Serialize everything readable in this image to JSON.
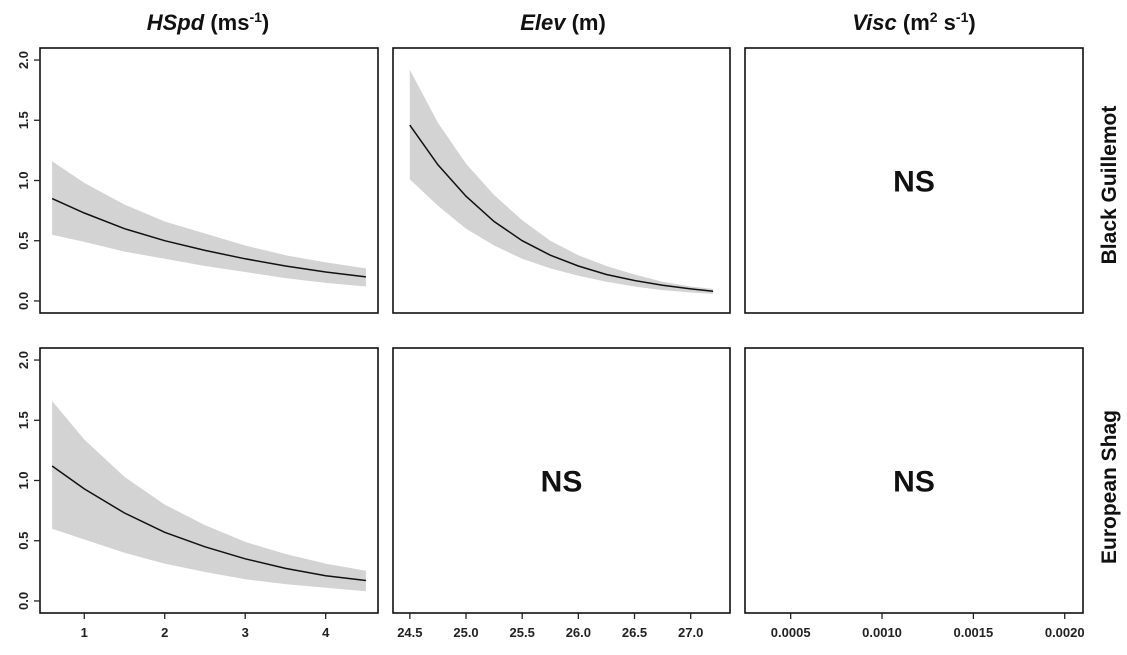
{
  "figure": {
    "col_titles": [
      {
        "italic": "HSpd",
        "rest": " (ms",
        "sup": "-1",
        "close": ")"
      },
      {
        "italic": "Elev",
        "rest": " (m)",
        "sup": "",
        "close": ""
      },
      {
        "italic": "Visc",
        "rest": " (m",
        "sup": "2",
        "close": "",
        "rest2": " s",
        "sup2": "-1",
        "close2": ")"
      }
    ],
    "row_titles": [
      "Black Guillemot",
      "European Shag"
    ],
    "ns_label": "NS"
  },
  "chart_data": [
    {
      "type": "line",
      "row": "Black Guillemot",
      "variable": "HSpd",
      "significant": true,
      "x": [
        0.6,
        1.0,
        1.5,
        2.0,
        2.5,
        3.0,
        3.5,
        4.0,
        4.5
      ],
      "y": [
        0.85,
        0.73,
        0.6,
        0.5,
        0.42,
        0.35,
        0.29,
        0.24,
        0.2
      ],
      "ci_lower": [
        0.55,
        0.49,
        0.41,
        0.35,
        0.29,
        0.24,
        0.19,
        0.15,
        0.12
      ],
      "ci_upper": [
        1.16,
        0.98,
        0.8,
        0.66,
        0.56,
        0.46,
        0.38,
        0.32,
        0.27
      ],
      "xlim": [
        0.45,
        4.65
      ],
      "xticks": [
        1,
        2,
        3,
        4
      ],
      "ylim": [
        -0.1,
        2.1
      ],
      "yticks": [
        0.0,
        0.5,
        1.0,
        1.5,
        2.0
      ],
      "ytick_labels": [
        "0.0",
        "0.5",
        "1.0",
        "1.5",
        "2.0"
      ]
    },
    {
      "type": "line",
      "row": "Black Guillemot",
      "variable": "Elev",
      "significant": true,
      "x": [
        24.5,
        24.75,
        25.0,
        25.25,
        25.5,
        25.75,
        26.0,
        26.25,
        26.5,
        26.75,
        27.0,
        27.2
      ],
      "y": [
        1.46,
        1.13,
        0.87,
        0.66,
        0.5,
        0.38,
        0.29,
        0.22,
        0.17,
        0.13,
        0.1,
        0.08
      ],
      "ci_lower": [
        1.01,
        0.79,
        0.6,
        0.46,
        0.35,
        0.27,
        0.21,
        0.16,
        0.12,
        0.09,
        0.07,
        0.06
      ],
      "ci_upper": [
        1.92,
        1.48,
        1.14,
        0.88,
        0.67,
        0.5,
        0.38,
        0.29,
        0.22,
        0.16,
        0.12,
        0.1
      ],
      "xlim": [
        24.35,
        27.35
      ],
      "xticks": [
        24.5,
        25.0,
        25.5,
        26.0,
        26.5,
        27.0
      ],
      "ylim": [
        -0.1,
        2.1
      ],
      "yticks": [
        0.0,
        0.5,
        1.0,
        1.5,
        2.0
      ],
      "ytick_labels": [
        "0.0",
        "0.5",
        "1.0",
        "1.5",
        "2.0"
      ]
    },
    {
      "type": "line",
      "row": "Black Guillemot",
      "variable": "Visc",
      "significant": false,
      "annotation": "NS",
      "xlim": [
        0.00025,
        0.0021
      ],
      "xticks": [
        0.0005,
        0.001,
        0.0015,
        0.002
      ],
      "ylim": [
        -0.1,
        2.1
      ]
    },
    {
      "type": "line",
      "row": "European Shag",
      "variable": "HSpd",
      "significant": true,
      "x": [
        0.6,
        1.0,
        1.5,
        2.0,
        2.5,
        3.0,
        3.5,
        4.0,
        4.5
      ],
      "y": [
        1.12,
        0.93,
        0.73,
        0.57,
        0.45,
        0.35,
        0.27,
        0.21,
        0.17
      ],
      "ci_lower": [
        0.6,
        0.51,
        0.4,
        0.31,
        0.24,
        0.18,
        0.14,
        0.11,
        0.08
      ],
      "ci_upper": [
        1.66,
        1.34,
        1.03,
        0.8,
        0.63,
        0.49,
        0.39,
        0.31,
        0.25
      ],
      "xlim": [
        0.45,
        4.65
      ],
      "xticks": [
        1,
        2,
        3,
        4
      ],
      "ylim": [
        -0.1,
        2.1
      ],
      "yticks": [
        0.0,
        0.5,
        1.0,
        1.5,
        2.0
      ],
      "ytick_labels": [
        "0.0",
        "0.5",
        "1.0",
        "1.5",
        "2.0"
      ]
    },
    {
      "type": "line",
      "row": "European Shag",
      "variable": "Elev",
      "significant": false,
      "annotation": "NS",
      "xlim": [
        24.35,
        27.35
      ],
      "xticks": [
        24.5,
        25.0,
        25.5,
        26.0,
        26.5,
        27.0
      ],
      "xtick_labels": [
        "24.5",
        "25.0",
        "25.5",
        "26.0",
        "26.5",
        "27.0"
      ],
      "ylim": [
        -0.1,
        2.1
      ]
    },
    {
      "type": "line",
      "row": "European Shag",
      "variable": "Visc",
      "significant": false,
      "annotation": "NS",
      "xlim": [
        0.00025,
        0.0021
      ],
      "xticks": [
        0.0005,
        0.001,
        0.0015,
        0.002
      ],
      "xtick_labels": [
        "0.0005",
        "0.0010",
        "0.0015",
        "0.0020"
      ],
      "ylim": [
        -0.1,
        2.1
      ]
    }
  ]
}
